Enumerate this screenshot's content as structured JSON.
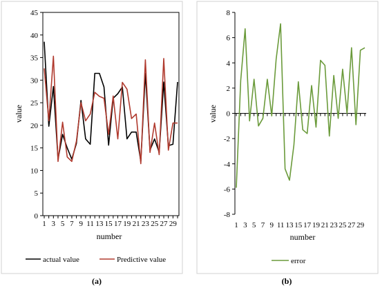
{
  "chart_data": [
    {
      "panel_label": "(a)",
      "type": "line",
      "xlabel": "number",
      "ylabel": "value",
      "ylim": [
        0,
        45
      ],
      "y_ticks": [
        0,
        5,
        10,
        15,
        20,
        25,
        30,
        35,
        40,
        45
      ],
      "x": [
        1,
        2,
        3,
        4,
        5,
        6,
        7,
        8,
        9,
        10,
        11,
        12,
        13,
        14,
        15,
        16,
        17,
        18,
        19,
        20,
        21,
        22,
        23,
        24,
        25,
        26,
        27,
        28,
        29,
        30
      ],
      "x_tick_labels": [
        "1",
        "3",
        "5",
        "7",
        "9",
        "11",
        "13",
        "15",
        "17",
        "19",
        "21",
        "23",
        "25",
        "27",
        "29"
      ],
      "grid": false,
      "legend_position": "bottom",
      "colors": {
        "actual": "#000000",
        "predictive": "#b03a2e"
      },
      "series": [
        {
          "name": "actual value",
          "values": [
            38.5,
            19.8,
            28.6,
            12.5,
            18.0,
            15.0,
            12.5,
            16.0,
            25.5,
            17.0,
            15.8,
            31.5,
            31.5,
            28.5,
            15.6,
            26.0,
            27.0,
            28.5,
            17.0,
            18.5,
            18.5,
            12.0,
            31.5,
            14.5,
            17.0,
            14.0,
            29.6,
            15.5,
            15.8,
            29.6
          ]
        },
        {
          "name": "Predictive value",
          "values": [
            32.6,
            21.0,
            35.3,
            12.0,
            20.7,
            13.0,
            12.0,
            16.5,
            25.0,
            21.0,
            22.5,
            27.3,
            26.4,
            26.0,
            18.0,
            26.5,
            17.0,
            29.5,
            28.0,
            21.5,
            22.5,
            11.5,
            34.5,
            14.0,
            20.5,
            13.5,
            34.8,
            14.5,
            20.5,
            20.5
          ]
        }
      ]
    },
    {
      "panel_label": "(b)",
      "type": "line",
      "xlabel": "number",
      "ylabel": "value",
      "ylim": [
        -8,
        8
      ],
      "y_ticks": [
        -8,
        -6,
        -4,
        -2,
        0,
        2,
        4,
        6,
        8
      ],
      "x": [
        1,
        2,
        3,
        4,
        5,
        6,
        7,
        8,
        9,
        10,
        11,
        12,
        13,
        14,
        15,
        16,
        17,
        18,
        19,
        20,
        21,
        22,
        23,
        24,
        25,
        26,
        27,
        28,
        29,
        30
      ],
      "x_tick_labels": [
        "1",
        "3",
        "5",
        "7",
        "9",
        "11",
        "13",
        "15",
        "17",
        "19",
        "21",
        "23",
        "25",
        "27",
        "29"
      ],
      "grid": false,
      "legend_position": "bottom",
      "colors": {
        "error": "#6a9a3a"
      },
      "series": [
        {
          "name": "error",
          "values": [
            -5.9,
            2.6,
            6.7,
            -0.6,
            2.7,
            -1.0,
            -0.4,
            2.7,
            -0.2,
            4.3,
            7.1,
            -4.4,
            -5.3,
            -2.5,
            2.5,
            -1.3,
            -1.6,
            2.2,
            -1.1,
            4.2,
            3.8,
            -1.8,
            3.0,
            -0.4,
            3.5,
            0.0,
            5.2,
            -0.9,
            5.0,
            5.2
          ]
        }
      ]
    }
  ]
}
